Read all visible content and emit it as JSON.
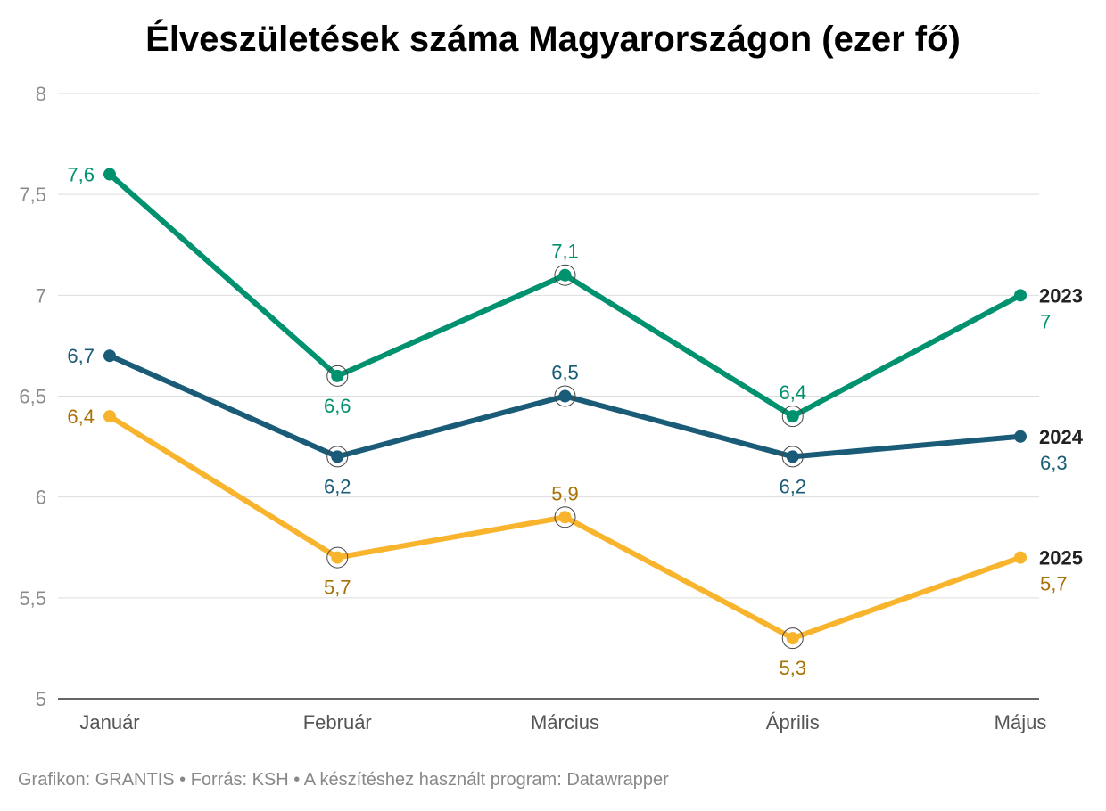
{
  "title": "Élveszületések száma Magyarországon (ezer fő)",
  "footer": "Grafikon: GRANTIS • Forrás: KSH • A készítéshez használt program: Datawrapper",
  "chart_data": {
    "type": "line",
    "title": "Élveszületések száma Magyarországon (ezer fő)",
    "xlabel": "",
    "ylabel": "",
    "categories": [
      "Január",
      "Február",
      "Március",
      "Április",
      "Május"
    ],
    "ylim": [
      5,
      8
    ],
    "yticks": [
      5,
      5.5,
      6,
      6.5,
      7,
      7.5,
      8
    ],
    "ytick_labels": [
      "5",
      "5,5",
      "6",
      "6,5",
      "7",
      "7,5",
      "8"
    ],
    "grid": true,
    "legend": "inline-right",
    "series": [
      {
        "name": "2023",
        "color": "#00916e",
        "label_color": "#00916e",
        "values": [
          7.6,
          6.6,
          7.1,
          6.4,
          7.0
        ],
        "labels": [
          "7,6",
          "6,6",
          "7,1",
          "6,4",
          "7"
        ]
      },
      {
        "name": "2024",
        "color": "#1a5b78",
        "label_color": "#1a5b78",
        "values": [
          6.7,
          6.2,
          6.5,
          6.2,
          6.3
        ],
        "labels": [
          "6,7",
          "6,2",
          "6,5",
          "6,2",
          "6,3"
        ]
      },
      {
        "name": "2025",
        "color": "#f9b42d",
        "label_color": "#a87205",
        "values": [
          6.4,
          5.7,
          5.9,
          5.3,
          5.7
        ],
        "labels": [
          "6,4",
          "5,7",
          "5,9",
          "5,3",
          "5,7"
        ]
      }
    ]
  }
}
